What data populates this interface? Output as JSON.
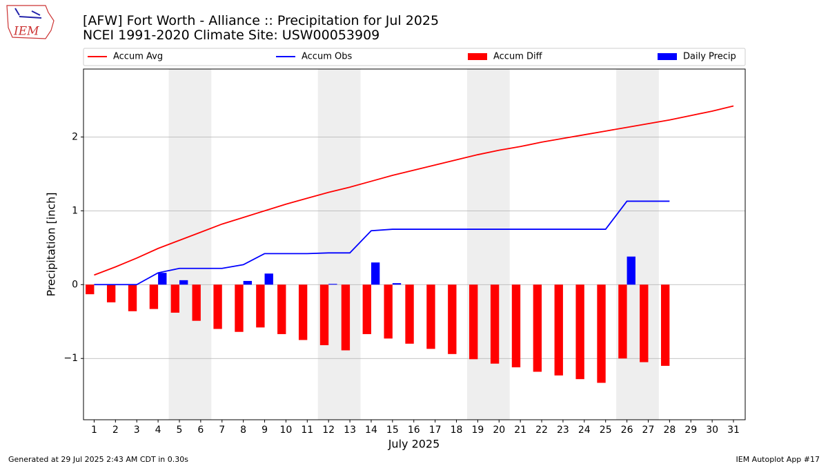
{
  "logo_text": "IEM",
  "chart_data": {
    "type": "combo",
    "title": "[AFW] Fort Worth - Alliance :: Precipitation for Jul 2025",
    "subtitle": "NCEI 1991-2020 Climate Site: USW00053909",
    "x_label": "July 2025",
    "y_label": "Precipitation [inch]",
    "footer_left": "Generated at 29 Jul 2025 2:43 AM CDT in 0.30s",
    "footer_right": "IEM Autoplot App #17",
    "x": [
      1,
      2,
      3,
      4,
      5,
      6,
      7,
      8,
      9,
      10,
      11,
      12,
      13,
      14,
      15,
      16,
      17,
      18,
      19,
      20,
      21,
      22,
      23,
      24,
      25,
      26,
      27,
      28,
      29,
      30,
      31
    ],
    "xlim": [
      0.5,
      31.55
    ],
    "xticks": [
      1,
      2,
      3,
      4,
      5,
      6,
      7,
      8,
      9,
      10,
      11,
      12,
      13,
      14,
      15,
      16,
      17,
      18,
      19,
      20,
      21,
      22,
      23,
      24,
      25,
      26,
      27,
      28,
      29,
      30,
      31
    ],
    "ylim": [
      -1.83,
      2.92
    ],
    "yticks": [
      {
        "value": -1,
        "label": "−1"
      },
      0,
      1,
      2
    ],
    "grid": true,
    "shaded_spans": [
      [
        4.5,
        6.5
      ],
      [
        11.5,
        13.5
      ],
      [
        18.5,
        20.5
      ],
      [
        25.5,
        27.5
      ]
    ],
    "shade_color": "#eeeeee",
    "legend": "top",
    "series": [
      {
        "name": "Accum Avg",
        "kind": "line",
        "color": "#ff0000",
        "values": [
          0.13,
          0.24,
          0.36,
          0.49,
          0.6,
          0.71,
          0.82,
          0.91,
          1.0,
          1.09,
          1.17,
          1.25,
          1.32,
          1.4,
          1.48,
          1.55,
          1.62,
          1.69,
          1.76,
          1.82,
          1.87,
          1.93,
          1.98,
          2.03,
          2.08,
          2.13,
          2.18,
          2.23,
          2.29,
          2.35,
          2.42
        ]
      },
      {
        "name": "Accum Obs",
        "kind": "line",
        "color": "#0000ff",
        "values": [
          0,
          0,
          0,
          0.16,
          0.22,
          0.22,
          0.22,
          0.27,
          0.42,
          0.42,
          0.42,
          0.43,
          0.43,
          0.73,
          0.75,
          0.75,
          0.75,
          0.75,
          0.75,
          0.75,
          0.75,
          0.75,
          0.75,
          0.75,
          0.75,
          1.13,
          1.13,
          1.13,
          null,
          null,
          null
        ]
      },
      {
        "name": "Accum Diff",
        "kind": "bar",
        "offset": -0.2,
        "color": "#ff0000",
        "values": [
          -0.13,
          -0.24,
          -0.36,
          -0.33,
          -0.38,
          -0.49,
          -0.6,
          -0.64,
          -0.58,
          -0.67,
          -0.75,
          -0.82,
          -0.89,
          -0.67,
          -0.73,
          -0.8,
          -0.87,
          -0.94,
          -1.01,
          -1.07,
          -1.12,
          -1.18,
          -1.23,
          -1.28,
          -1.33,
          -1.0,
          -1.05,
          -1.1,
          null,
          null,
          null
        ]
      },
      {
        "name": "Daily Precip",
        "kind": "bar",
        "offset": 0.2,
        "color": "#0000ff",
        "values": [
          0,
          0,
          0,
          0.16,
          0.06,
          0,
          0,
          0.05,
          0.15,
          0,
          0,
          0.01,
          0,
          0.3,
          0.02,
          0,
          0,
          0,
          0,
          0,
          0,
          0,
          0,
          0,
          0,
          0.38,
          0,
          0,
          null,
          null,
          null
        ]
      }
    ]
  }
}
